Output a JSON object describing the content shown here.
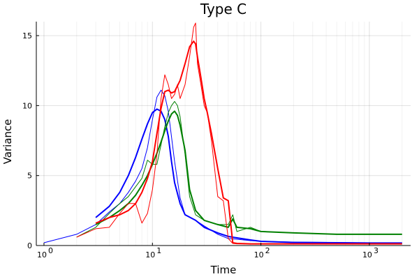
{
  "chart_data": {
    "type": "line",
    "title": "Type C",
    "xlabel": "Time",
    "ylabel": "Variance",
    "xscale": "log",
    "xlim": [
      1,
      2000
    ],
    "ylim": [
      0,
      16
    ],
    "xticks": [
      {
        "value": 1,
        "base": "10",
        "exp": "0"
      },
      {
        "value": 10,
        "base": "10",
        "exp": "1"
      },
      {
        "value": 100,
        "base": "10",
        "exp": "2"
      },
      {
        "value": 1000,
        "base": "10",
        "exp": "3"
      }
    ],
    "yticks": [
      0,
      5,
      10,
      15
    ],
    "grid": true,
    "legend": "none",
    "series": [
      {
        "color": "#0000ff",
        "width": 1,
        "x": [
          1,
          2,
          3,
          4,
          5,
          6,
          7,
          8,
          9,
          10,
          11,
          12,
          13,
          14,
          16,
          18,
          20,
          25,
          30,
          40,
          50,
          60,
          80,
          100,
          200,
          500,
          1000,
          2000
        ],
        "y": [
          0.2,
          0.8,
          1.5,
          2.4,
          3.0,
          3.8,
          4.6,
          5.5,
          7.0,
          9.0,
          10.6,
          11.1,
          10.7,
          9.6,
          6.0,
          3.4,
          2.2,
          1.8,
          1.4,
          0.8,
          0.5,
          0.45,
          0.35,
          0.3,
          0.25,
          0.22,
          0.2,
          0.2
        ]
      },
      {
        "color": "#0000ff",
        "width": 2,
        "x": [
          3,
          4,
          5,
          6,
          7,
          8,
          9,
          10,
          11,
          12,
          13,
          14,
          15,
          16,
          18,
          20,
          25,
          30,
          40,
          50,
          60,
          80,
          100,
          200,
          500,
          1000,
          2000
        ],
        "y": [
          2.0,
          2.8,
          3.8,
          5.0,
          6.3,
          7.6,
          8.7,
          9.5,
          9.75,
          9.6,
          9.0,
          7.8,
          6.0,
          4.5,
          3.0,
          2.2,
          1.8,
          1.3,
          0.9,
          0.65,
          0.55,
          0.4,
          0.3,
          0.22,
          0.2,
          0.18,
          0.18
        ]
      },
      {
        "color": "#008000",
        "width": 1,
        "x": [
          2,
          3,
          4,
          5,
          6,
          7,
          8,
          9,
          10,
          11,
          12,
          13,
          14,
          15,
          16,
          17,
          18,
          20,
          22,
          25,
          30,
          40,
          50,
          55,
          60,
          80,
          100,
          200,
          500,
          1000,
          2000
        ],
        "y": [
          0.6,
          1.3,
          2.3,
          3.0,
          3.5,
          4.2,
          4.8,
          6.1,
          5.8,
          5.8,
          7.2,
          8.5,
          9.5,
          10.0,
          10.3,
          10.0,
          9.2,
          6.5,
          3.5,
          2.2,
          1.8,
          1.5,
          1.5,
          2.2,
          1.0,
          1.3,
          1.0,
          0.9,
          0.8,
          0.8,
          0.8
        ]
      },
      {
        "color": "#008000",
        "width": 2,
        "x": [
          3,
          4,
          5,
          6,
          7,
          8,
          9,
          10,
          11,
          12,
          13,
          14,
          15,
          16,
          17,
          18,
          20,
          22,
          25,
          30,
          40,
          50,
          55,
          60,
          80,
          100,
          200,
          500,
          1000,
          2000
        ],
        "y": [
          1.5,
          2.0,
          2.5,
          3.0,
          3.6,
          4.3,
          5.0,
          5.8,
          6.6,
          7.4,
          8.2,
          8.9,
          9.4,
          9.6,
          9.3,
          8.6,
          6.8,
          4.0,
          2.5,
          1.8,
          1.5,
          1.3,
          1.9,
          1.3,
          1.2,
          1.0,
          0.9,
          0.8,
          0.8,
          0.8
        ]
      },
      {
        "color": "#ff0000",
        "width": 1,
        "x": [
          2,
          3,
          4,
          5,
          6,
          7,
          8,
          9,
          10,
          11,
          12,
          13,
          14,
          15,
          16,
          17,
          18,
          20,
          22,
          24,
          25,
          26,
          28,
          30,
          32,
          35,
          40,
          45,
          50,
          55,
          60,
          80,
          100,
          200,
          500,
          1000,
          2000
        ],
        "y": [
          0.6,
          1.2,
          1.3,
          2.3,
          3.0,
          3.0,
          1.6,
          2.3,
          4.0,
          6.5,
          10.5,
          12.2,
          11.5,
          10.5,
          10.8,
          11.5,
          10.5,
          11.5,
          13.5,
          15.6,
          15.9,
          13.0,
          11.5,
          10.0,
          9.5,
          7.5,
          3.5,
          3.2,
          0.5,
          0.15,
          0.12,
          0.12,
          0.12,
          0.12,
          0.12,
          0.12,
          0.12
        ]
      },
      {
        "color": "#ff0000",
        "width": 2,
        "x": [
          3,
          4,
          5,
          6,
          7,
          8,
          9,
          10,
          11,
          12,
          13,
          14,
          15,
          16,
          18,
          20,
          22,
          24,
          25,
          26,
          28,
          30,
          32,
          35,
          40,
          45,
          50,
          55,
          60,
          80,
          100,
          200,
          500,
          1000,
          2000
        ],
        "y": [
          1.6,
          2.0,
          2.2,
          2.5,
          3.0,
          3.8,
          4.8,
          6.0,
          8.0,
          9.8,
          11.0,
          11.1,
          10.9,
          11.0,
          11.8,
          13.0,
          14.2,
          14.6,
          14.4,
          13.5,
          12.0,
          10.5,
          9.5,
          8.0,
          5.5,
          3.4,
          3.2,
          0.2,
          0.15,
          0.12,
          0.12,
          0.12,
          0.12,
          0.12,
          0.12
        ]
      }
    ]
  }
}
